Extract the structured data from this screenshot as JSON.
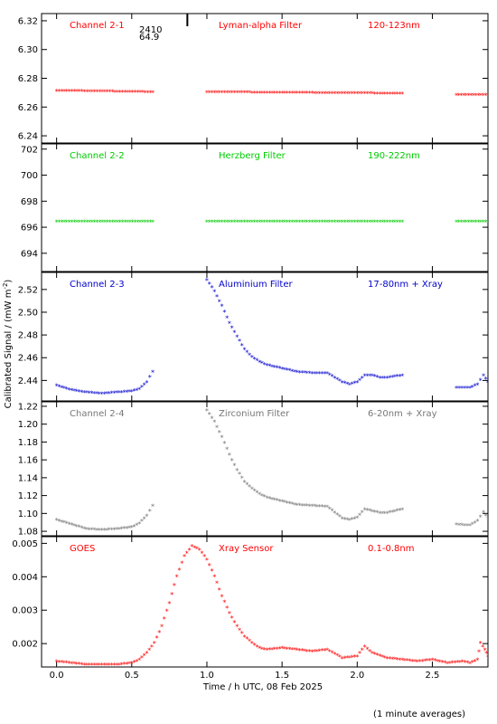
{
  "figure": {
    "ylabel": "Calibrated Signal / (mW m",
    "ylabel_sup": "-2",
    "ylabel_end": ")",
    "xlabel": "Time / h UTC, 08 Feb 2025",
    "footnote": "(1 minute averages)",
    "x_ticks": [
      "0.0",
      "0.5",
      "1.0",
      "1.5",
      "2.0",
      "2.5"
    ]
  },
  "chart_data": [
    {
      "type": "scatter",
      "channel": "Channel 2-1",
      "filter": "Lyman-alpha Filter",
      "band": "120-123nm",
      "color": "#ff0000",
      "annotation": [
        "2410",
        "64.9"
      ],
      "annotation_x": 0.87,
      "xlim": [
        -0.1,
        2.87
      ],
      "ylim": [
        6.235,
        6.325
      ],
      "y_ticks": [
        "6.24",
        "6.26",
        "6.28",
        "6.30",
        "6.32"
      ],
      "segments": [
        {
          "x": [
            0.0,
            0.64
          ],
          "y": [
            6.271,
            6.27
          ]
        },
        {
          "x": [
            1.0,
            2.3
          ],
          "y": [
            6.27,
            6.269
          ]
        },
        {
          "x": [
            2.66,
            2.87
          ],
          "y": [
            6.268,
            6.268
          ]
        }
      ]
    },
    {
      "type": "scatter",
      "channel": "Channel 2-2",
      "filter": "Herzberg Filter",
      "band": "190-222nm",
      "color": "#00cc00",
      "xlim": [
        -0.1,
        2.87
      ],
      "ylim": [
        692.6,
        702.4
      ],
      "y_ticks": [
        "694",
        "696",
        "698",
        "700",
        "702"
      ],
      "segments": [
        {
          "x": [
            0.0,
            0.64
          ],
          "y": [
            696.4,
            696.4
          ]
        },
        {
          "x": [
            1.0,
            2.3
          ],
          "y": [
            696.4,
            696.4
          ]
        },
        {
          "x": [
            2.66,
            2.87
          ],
          "y": [
            696.4,
            696.4
          ]
        }
      ]
    },
    {
      "type": "scatter",
      "channel": "Channel 2-3",
      "filter": "Aluminium Filter",
      "band": "17-80nm + Xray",
      "color": "#0000cc",
      "xlim": [
        -0.1,
        2.87
      ],
      "ylim": [
        2.422,
        2.535
      ],
      "y_ticks": [
        "2.44",
        "2.46",
        "2.48",
        "2.50",
        "2.52"
      ],
      "segments": [
        {
          "x": [
            0.0,
            0.1,
            0.2,
            0.3,
            0.4,
            0.5,
            0.55,
            0.6,
            0.64
          ],
          "y": [
            2.435,
            2.431,
            2.429,
            2.428,
            2.429,
            2.43,
            2.432,
            2.438,
            2.447
          ]
        },
        {
          "x": [
            1.0,
            1.05,
            1.1,
            1.15,
            1.2,
            1.25,
            1.3,
            1.35,
            1.4,
            1.5,
            1.6,
            1.7,
            1.8,
            1.9,
            1.95,
            2.0,
            2.05,
            2.1,
            2.15,
            2.2,
            2.3
          ],
          "y": [
            2.528,
            2.518,
            2.505,
            2.49,
            2.478,
            2.467,
            2.46,
            2.456,
            2.453,
            2.45,
            2.447,
            2.446,
            2.446,
            2.438,
            2.436,
            2.438,
            2.444,
            2.444,
            2.442,
            2.442,
            2.444
          ]
        },
        {
          "x": [
            2.66,
            2.75,
            2.8,
            2.84,
            2.87
          ],
          "y": [
            2.433,
            2.433,
            2.436,
            2.444,
            2.438
          ]
        }
      ]
    },
    {
      "type": "scatter",
      "channel": "Channel 2-4",
      "filter": "Zirconium Filter",
      "band": "6-20nm + Xray",
      "color": "#777777",
      "xlim": [
        -0.1,
        2.87
      ],
      "ylim": [
        1.075,
        1.225
      ],
      "y_ticks": [
        "1.08",
        "1.10",
        "1.12",
        "1.14",
        "1.16",
        "1.18",
        "1.20",
        "1.22"
      ],
      "segments": [
        {
          "x": [
            0.0,
            0.1,
            0.2,
            0.3,
            0.4,
            0.5,
            0.55,
            0.6,
            0.64
          ],
          "y": [
            1.092,
            1.087,
            1.082,
            1.081,
            1.082,
            1.084,
            1.088,
            1.097,
            1.108
          ]
        },
        {
          "x": [
            1.0,
            1.05,
            1.1,
            1.15,
            1.2,
            1.25,
            1.3,
            1.35,
            1.4,
            1.5,
            1.6,
            1.7,
            1.8,
            1.9,
            1.95,
            2.0,
            2.05,
            2.1,
            2.15,
            2.2,
            2.3
          ],
          "y": [
            1.215,
            1.202,
            1.185,
            1.165,
            1.148,
            1.135,
            1.127,
            1.121,
            1.117,
            1.113,
            1.109,
            1.108,
            1.107,
            1.094,
            1.092,
            1.095,
            1.104,
            1.102,
            1.1,
            1.1,
            1.104
          ]
        },
        {
          "x": [
            2.66,
            2.75,
            2.8,
            2.84,
            2.87
          ],
          "y": [
            1.087,
            1.086,
            1.091,
            1.101,
            1.094
          ]
        }
      ]
    },
    {
      "type": "scatter",
      "channel": "GOES",
      "filter": "Xray Sensor",
      "band": "0.1-0.8nm",
      "color": "#ff0000",
      "xlim": [
        -0.1,
        2.87
      ],
      "ylim": [
        0.0013,
        0.0052
      ],
      "y_ticks": [
        "0.002",
        "0.003",
        "0.004",
        "0.005"
      ],
      "segments": [
        {
          "x": [
            0.0,
            0.1,
            0.2,
            0.3,
            0.4,
            0.5,
            0.55,
            0.6,
            0.65,
            0.7,
            0.75,
            0.8,
            0.85,
            0.9,
            0.95,
            1.0,
            1.05,
            1.1,
            1.15,
            1.2,
            1.25,
            1.3,
            1.35,
            1.4,
            1.5,
            1.6,
            1.7,
            1.8,
            1.9,
            2.0,
            2.05,
            2.1,
            2.2,
            2.3,
            2.4,
            2.5,
            2.6,
            2.7,
            2.75,
            2.8,
            2.82,
            2.85,
            2.87
          ],
          "y": [
            0.00145,
            0.0014,
            0.00135,
            0.00135,
            0.00135,
            0.0014,
            0.0015,
            0.0017,
            0.002,
            0.0025,
            0.0032,
            0.004,
            0.0046,
            0.0049,
            0.0048,
            0.0045,
            0.004,
            0.0034,
            0.0029,
            0.0025,
            0.0022,
            0.002,
            0.00185,
            0.0018,
            0.00185,
            0.0018,
            0.00175,
            0.0018,
            0.00155,
            0.0016,
            0.0019,
            0.0017,
            0.00155,
            0.0015,
            0.00145,
            0.0015,
            0.0014,
            0.00145,
            0.0014,
            0.0015,
            0.002,
            0.0018,
            0.0016
          ]
        }
      ]
    }
  ]
}
